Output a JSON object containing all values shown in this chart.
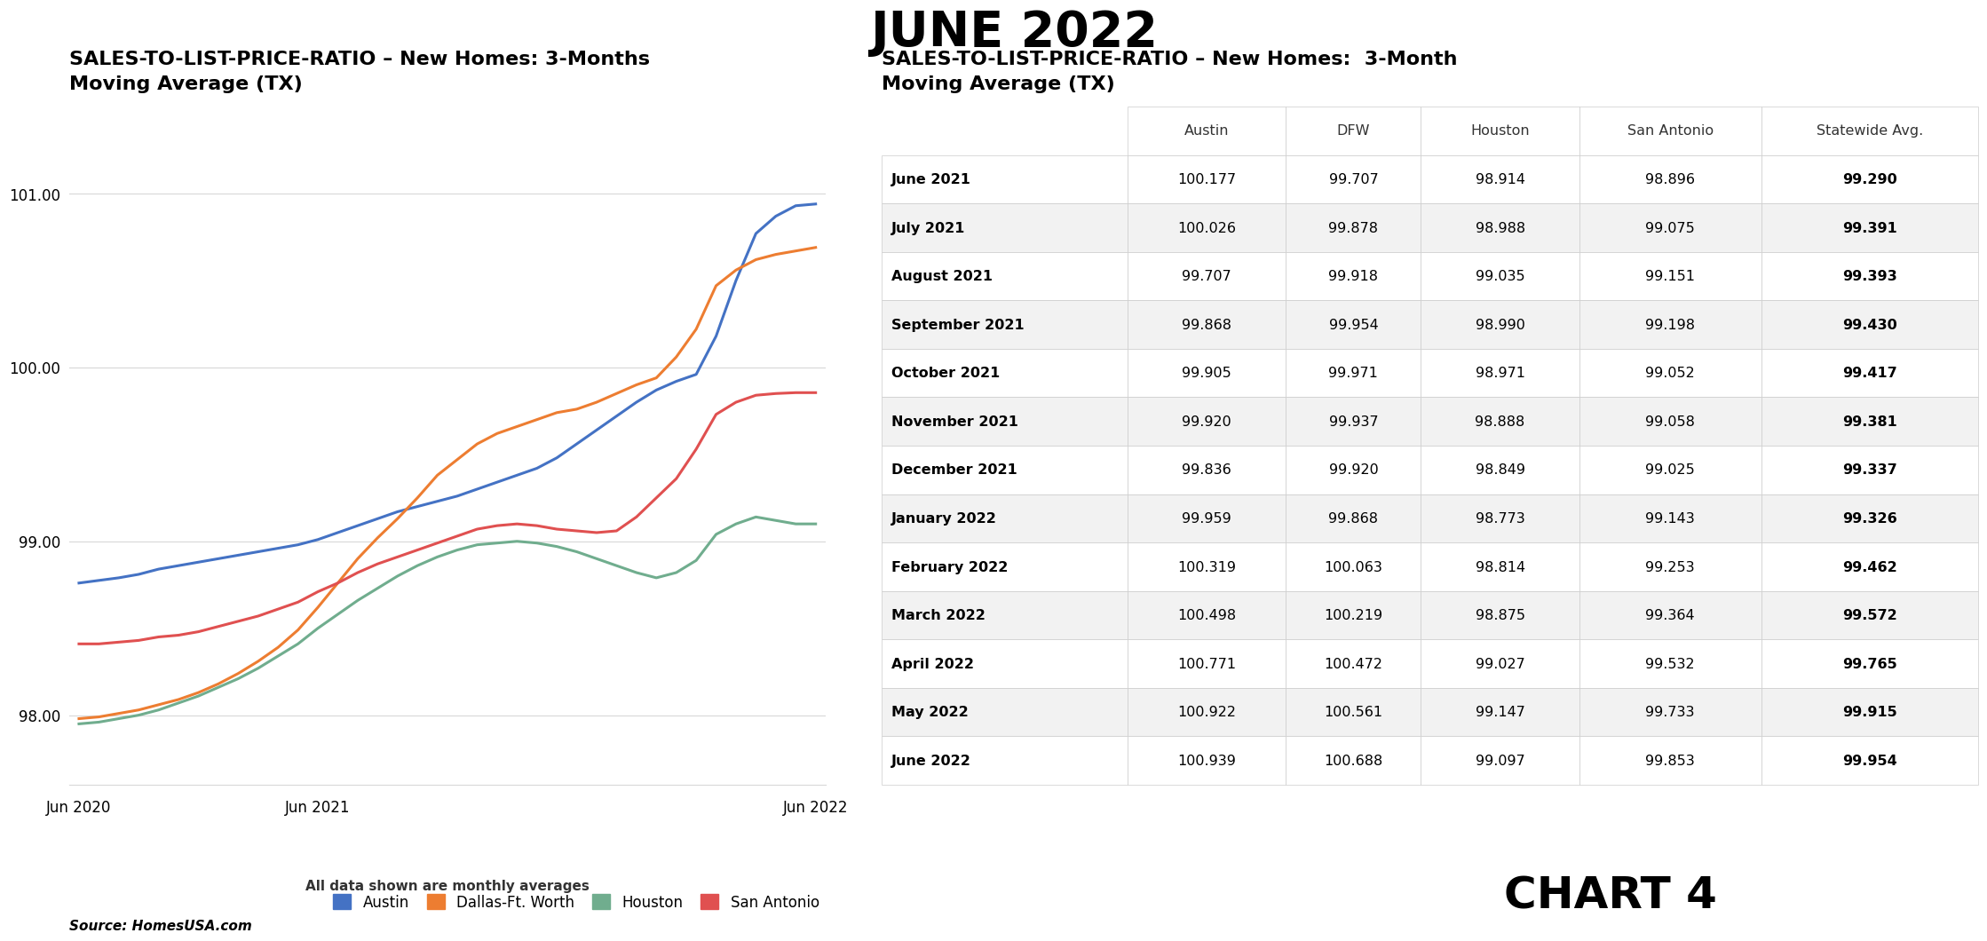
{
  "title": "JUNE 2022",
  "chart_title_left": "SALES-TO-LIST-PRICE-RATIO – New Homes: 3-Months\nMoving Average (TX)",
  "chart_title_right": "SALES-TO-LIST-PRICE-RATIO – New Homes:  3-Month\nMoving Average (TX)",
  "subtitle_note": "All data shown are monthly averages",
  "source": "Source: HomesUSA.com",
  "chart4_label": "CHART 4",
  "x_tick_labels": [
    "Jun 2020",
    "Jun 2021",
    "Jun 2022"
  ],
  "y_ticks": [
    98.0,
    99.0,
    100.0,
    101.0
  ],
  "ylim": [
    97.6,
    101.5
  ],
  "colors": {
    "Austin": "#4472c4",
    "Dallas-Ft. Worth": "#ed7d31",
    "Houston": "#70ad8e",
    "San Antonio": "#e05050"
  },
  "legend_labels": [
    "Austin",
    "Dallas-Ft. Worth",
    "Houston",
    "San Antonio"
  ],
  "table_columns": [
    "",
    "Austin",
    "DFW",
    "Houston",
    "San Antonio",
    "Statewide Avg."
  ],
  "table_rows": [
    [
      "June 2021",
      100.177,
      99.707,
      98.914,
      98.896,
      99.29
    ],
    [
      "July 2021",
      100.026,
      99.878,
      98.988,
      99.075,
      99.391
    ],
    [
      "August 2021",
      99.707,
      99.918,
      99.035,
      99.151,
      99.393
    ],
    [
      "September 2021",
      99.868,
      99.954,
      98.99,
      99.198,
      99.43
    ],
    [
      "October 2021",
      99.905,
      99.971,
      98.971,
      99.052,
      99.417
    ],
    [
      "November 2021",
      99.92,
      99.937,
      98.888,
      99.058,
      99.381
    ],
    [
      "December 2021",
      99.836,
      99.92,
      98.849,
      99.025,
      99.337
    ],
    [
      "January 2022",
      99.959,
      99.868,
      98.773,
      99.143,
      99.326
    ],
    [
      "February 2022",
      100.319,
      100.063,
      98.814,
      99.253,
      99.462
    ],
    [
      "March 2022",
      100.498,
      100.219,
      98.875,
      99.364,
      99.572
    ],
    [
      "April 2022",
      100.771,
      100.472,
      99.027,
      99.532,
      99.765
    ],
    [
      "May 2022",
      100.922,
      100.561,
      99.147,
      99.733,
      99.915
    ],
    [
      "June 2022",
      100.939,
      100.688,
      99.097,
      99.853,
      99.954
    ]
  ],
  "line_data": {
    "Austin": [
      98.76,
      98.775,
      98.79,
      98.81,
      98.84,
      98.86,
      98.88,
      98.9,
      98.92,
      98.94,
      98.96,
      98.98,
      99.01,
      99.05,
      99.09,
      99.13,
      99.17,
      99.2,
      99.23,
      99.26,
      99.3,
      99.34,
      99.38,
      99.42,
      99.48,
      99.56,
      99.64,
      99.72,
      99.8,
      99.87,
      99.92,
      99.96,
      100.18,
      100.5,
      100.77,
      100.87,
      100.93,
      100.94
    ],
    "Dallas_FtWorth": [
      97.98,
      97.99,
      98.01,
      98.03,
      98.06,
      98.09,
      98.13,
      98.18,
      98.24,
      98.31,
      98.39,
      98.49,
      98.62,
      98.76,
      98.9,
      99.02,
      99.13,
      99.25,
      99.38,
      99.47,
      99.56,
      99.62,
      99.66,
      99.7,
      99.74,
      99.76,
      99.8,
      99.85,
      99.9,
      99.94,
      100.06,
      100.22,
      100.47,
      100.56,
      100.62,
      100.65,
      100.67,
      100.69
    ],
    "Houston": [
      97.95,
      97.96,
      97.98,
      98.0,
      98.03,
      98.07,
      98.11,
      98.16,
      98.21,
      98.27,
      98.34,
      98.41,
      98.5,
      98.58,
      98.66,
      98.73,
      98.8,
      98.86,
      98.91,
      98.95,
      98.98,
      98.99,
      99.0,
      98.99,
      98.97,
      98.94,
      98.9,
      98.86,
      98.82,
      98.79,
      98.82,
      98.89,
      99.04,
      99.1,
      99.14,
      99.12,
      99.1,
      99.1
    ],
    "San_Antonio": [
      98.41,
      98.41,
      98.42,
      98.43,
      98.45,
      98.46,
      98.48,
      98.51,
      98.54,
      98.57,
      98.61,
      98.65,
      98.71,
      98.76,
      98.82,
      98.87,
      98.91,
      98.95,
      98.99,
      99.03,
      99.07,
      99.09,
      99.1,
      99.09,
      99.07,
      99.06,
      99.05,
      99.06,
      99.14,
      99.25,
      99.36,
      99.53,
      99.73,
      99.8,
      99.84,
      99.85,
      99.855,
      99.855
    ]
  },
  "background_color": "#ffffff"
}
